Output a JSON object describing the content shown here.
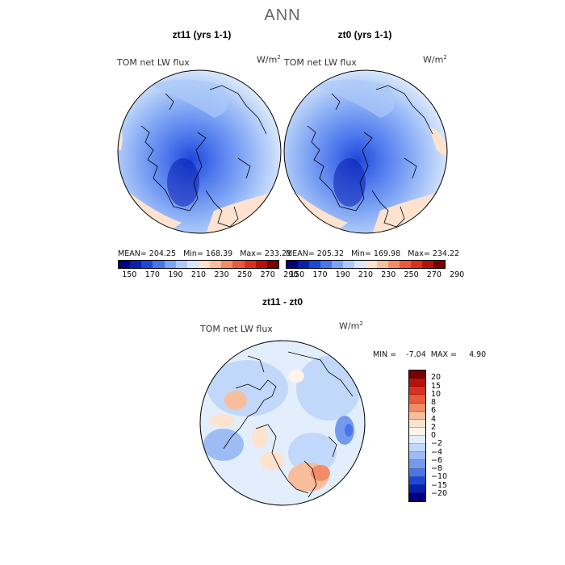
{
  "figure": {
    "title": "ANN"
  },
  "panels": [
    {
      "title": "zt11 (yrs 1-1)",
      "field": "TOM net LW flux",
      "units": "W/m",
      "units_exp": "2",
      "stats": "MEAN= 204.25   Min= 168.39   Max= 233.21"
    },
    {
      "title": "zt0 (yrs 1-1)",
      "field": "TOM net LW flux",
      "units": "W/m",
      "units_exp": "2",
      "stats": "MEAN= 205.32   Min= 169.98   Max= 234.22"
    }
  ],
  "diff": {
    "title": "zt11 - zt0",
    "field": "TOM net LW flux",
    "units": "W/m",
    "units_exp": "2",
    "stats": "MIN =    -7.04  MAX =     4.90"
  },
  "colorbar_abs": {
    "labels": [
      "150",
      "170",
      "190",
      "210",
      "230",
      "250",
      "270",
      "290"
    ],
    "colors": [
      "#00007f",
      "#0a1fb0",
      "#1e46d8",
      "#4a74ec",
      "#7da3f4",
      "#adc9f8",
      "#d7e6fb",
      "#fde3cf",
      "#f8bd9c",
      "#f28c67",
      "#e95a3a",
      "#d9311d",
      "#b5120d",
      "#7a0000"
    ]
  },
  "colorbar_diff": {
    "labels": [
      "20",
      "15",
      "10",
      "8",
      "6",
      "4",
      "2",
      "0",
      "−2",
      "−4",
      "−6",
      "−8",
      "−10",
      "−15",
      "−20"
    ],
    "colors": [
      "#7a0000",
      "#b5120d",
      "#d9311d",
      "#e95a3a",
      "#f28c67",
      "#f8bd9c",
      "#fde3cf",
      "#fff3ea",
      "#e3eefc",
      "#c2d8fa",
      "#9dbcf4",
      "#739aed",
      "#4a74ec",
      "#1e46d8",
      "#0a1fb0",
      "#00007f"
    ]
  }
}
